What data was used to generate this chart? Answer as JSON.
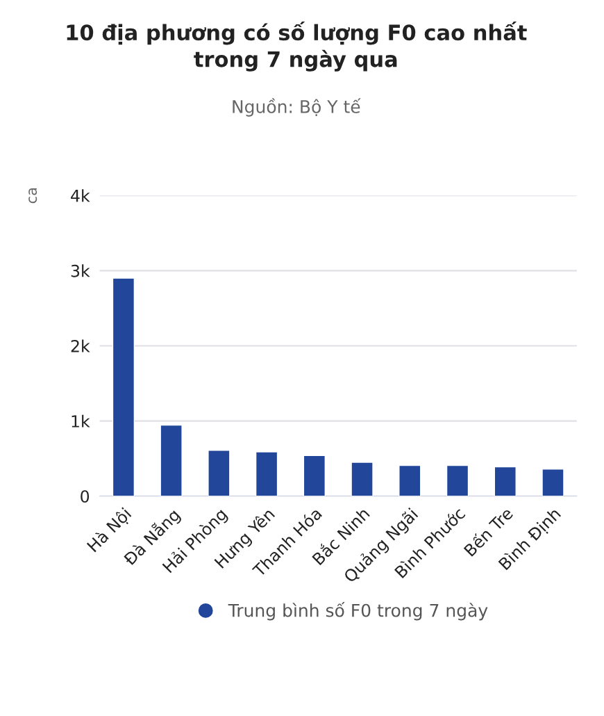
{
  "chart_data": {
    "type": "bar",
    "title": "10 địa phương có số lượng F0 cao nhất\ntrong 7 ngày qua",
    "subtitle": "Nguồn: Bộ Y tế",
    "ylabel": "ca",
    "categories": [
      "Hà Nội",
      "Đà Nẵng",
      "Hải Phòng",
      "Hưng Yên",
      "Thanh Hóa",
      "Bắc Ninh",
      "Quảng Ngãi",
      "Bình Phước",
      "Bến Tre",
      "Bình Định"
    ],
    "series": [
      {
        "name": "Trung bình số F0 trong 7 ngày",
        "color": "#21469a",
        "values": [
          2900,
          945,
          610,
          590,
          540,
          450,
          410,
          410,
          390,
          360
        ]
      }
    ],
    "ylim": [
      0,
      4000
    ],
    "yticks": [
      {
        "value": 0,
        "label": "0"
      },
      {
        "value": 1000,
        "label": "1k"
      },
      {
        "value": 2000,
        "label": "2k"
      },
      {
        "value": 3000,
        "label": "3k"
      },
      {
        "value": 4000,
        "label": "4k"
      }
    ],
    "grid": "y",
    "legend": "bottom"
  }
}
